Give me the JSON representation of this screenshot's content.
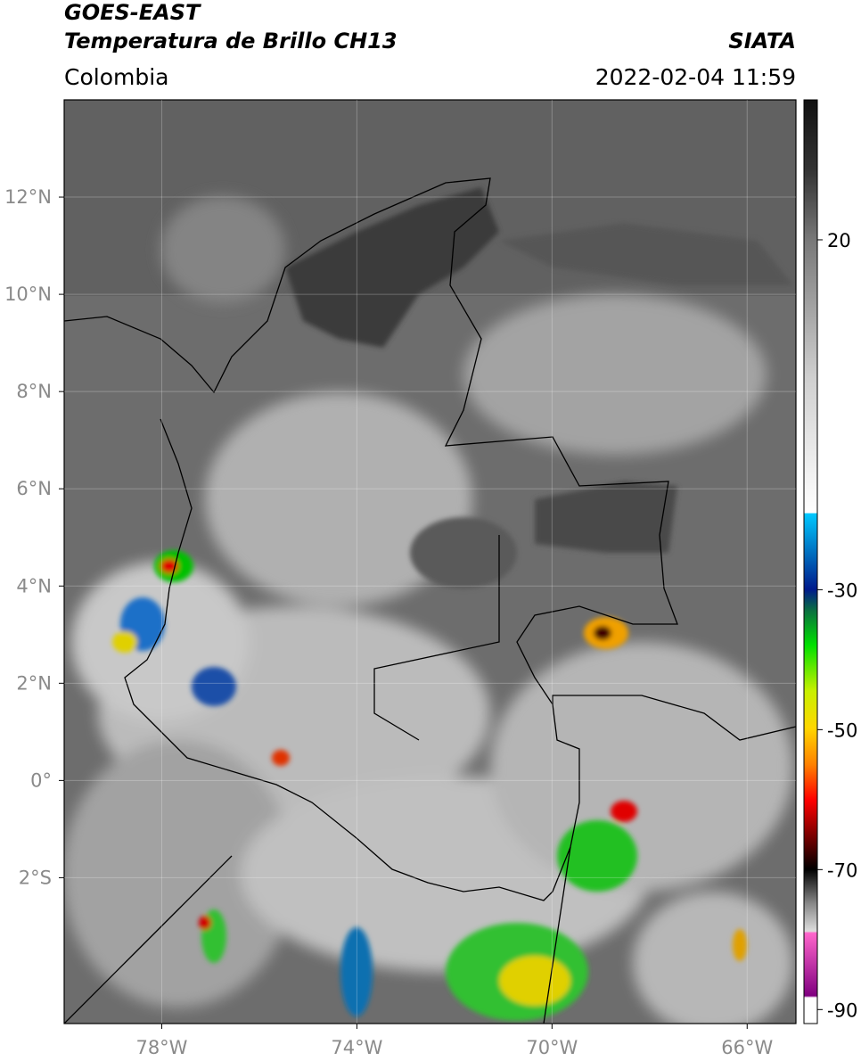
{
  "header": {
    "title": "GOES-EAST",
    "subtitle": "Temperatura de Brillo CH13",
    "region": "Colombia",
    "source": "SIATA",
    "timestamp": "2022-02-04 11:59"
  },
  "map": {
    "xlim": [
      -80,
      -65
    ],
    "ylim": [
      -5,
      14
    ],
    "xticks": [
      {
        "value": -78,
        "label": "78°W"
      },
      {
        "value": -74,
        "label": "74°W"
      },
      {
        "value": -70,
        "label": "70°W"
      },
      {
        "value": -66,
        "label": "66°W"
      }
    ],
    "yticks": [
      {
        "value": 12,
        "label": "12°N"
      },
      {
        "value": 10,
        "label": "10°N"
      },
      {
        "value": 8,
        "label": "8°N"
      },
      {
        "value": 6,
        "label": "6°N"
      },
      {
        "value": 4,
        "label": "4°N"
      },
      {
        "value": 2,
        "label": "2°N"
      },
      {
        "value": 0,
        "label": "0°"
      },
      {
        "value": -2,
        "label": "2°S"
      }
    ],
    "grid": true
  },
  "colorbar": {
    "lim": [
      -92,
      40
    ],
    "ticks": [
      20,
      -30,
      -50,
      -70,
      -90
    ]
  }
}
